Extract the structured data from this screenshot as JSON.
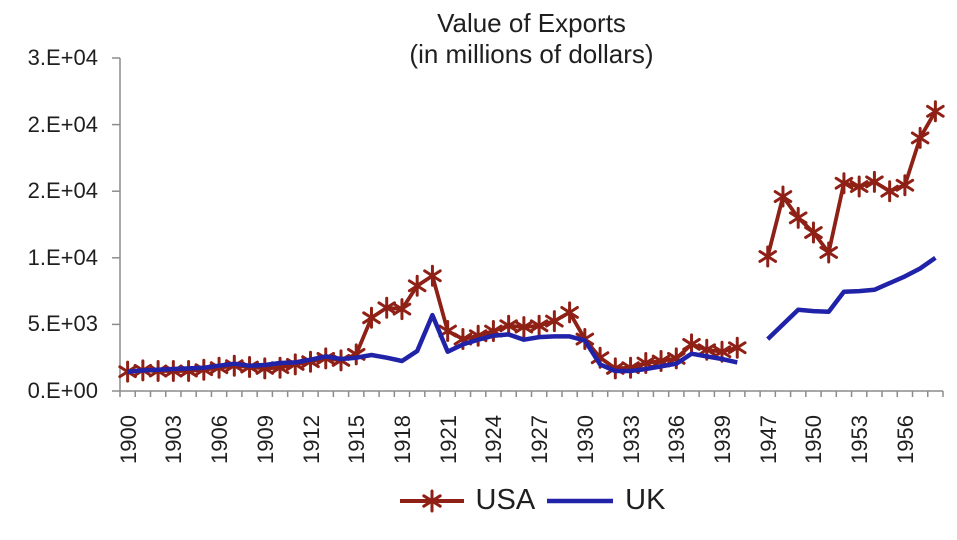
{
  "title": {
    "line1": "Value of Exports",
    "line2": "(in millions of dollars)"
  },
  "colors": {
    "usa_line": "#8e2016",
    "uk_line": "#2023a8",
    "axis": "#8c8c8c",
    "text": "#1f1f1f",
    "background": "#ffffff"
  },
  "chart_data": {
    "type": "line",
    "title": "Value of Exports (in millions of dollars)",
    "xlabel": "",
    "ylabel": "",
    "grid": false,
    "legend_position": "bottom-center",
    "y_axis": {
      "range": [
        0,
        25000
      ],
      "tick_values": [
        0,
        5000,
        10000,
        15000,
        20000,
        25000
      ],
      "tick_labels": [
        "0.E+00",
        "5.E+03",
        "1.E+04",
        "2.E+04",
        "2.E+04",
        "3.E+04"
      ]
    },
    "x_axis": {
      "visible_labels": [
        "1900",
        "1903",
        "1906",
        "1909",
        "1912",
        "1915",
        "1918",
        "1921",
        "1924",
        "1927",
        "1930",
        "1933",
        "1936",
        "1939",
        "1947",
        "1950",
        "1953",
        "1956"
      ],
      "label_rotation_degrees": 90,
      "category_years_prewar_first": 1900,
      "category_years_prewar_last": 1940,
      "category_years_postwar_first": 1947,
      "category_years_postwar_last": 1958
    },
    "series": [
      {
        "name": "USA",
        "color": "#8e2016",
        "marker": "star",
        "points": [
          [
            1900,
            1450
          ],
          [
            1901,
            1550
          ],
          [
            1902,
            1500
          ],
          [
            1903,
            1500
          ],
          [
            1904,
            1500
          ],
          [
            1905,
            1600
          ],
          [
            1906,
            1750
          ],
          [
            1907,
            1900
          ],
          [
            1908,
            1800
          ],
          [
            1909,
            1700
          ],
          [
            1910,
            1750
          ],
          [
            1911,
            2000
          ],
          [
            1912,
            2200
          ],
          [
            1913,
            2450
          ],
          [
            1914,
            2300
          ],
          [
            1915,
            2750
          ],
          [
            1916,
            5500
          ],
          [
            1917,
            6250
          ],
          [
            1918,
            6150
          ],
          [
            1919,
            7900
          ],
          [
            1920,
            8650
          ],
          [
            1921,
            4500
          ],
          [
            1922,
            3900
          ],
          [
            1923,
            4150
          ],
          [
            1924,
            4500
          ],
          [
            1925,
            4900
          ],
          [
            1926,
            4800
          ],
          [
            1927,
            4900
          ],
          [
            1928,
            5250
          ],
          [
            1929,
            5900
          ],
          [
            1930,
            3900
          ],
          [
            1931,
            2500
          ],
          [
            1932,
            1700
          ],
          [
            1933,
            1750
          ],
          [
            1934,
            2100
          ],
          [
            1935,
            2250
          ],
          [
            1936,
            2450
          ],
          [
            1937,
            3500
          ],
          [
            1938,
            3100
          ],
          [
            1939,
            2950
          ],
          [
            1940,
            3250
          ],
          [
            1947,
            10100
          ],
          [
            1948,
            14600
          ],
          [
            1949,
            13000
          ],
          [
            1950,
            11900
          ],
          [
            1951,
            10400
          ],
          [
            1952,
            15600
          ],
          [
            1953,
            15350
          ],
          [
            1954,
            15700
          ],
          [
            1955,
            15000
          ],
          [
            1956,
            15450
          ],
          [
            1957,
            19000
          ],
          [
            1958,
            21000
          ]
        ]
      },
      {
        "name": "UK",
        "color": "#2023a8",
        "marker": "none",
        "points": [
          [
            1900,
            1450
          ],
          [
            1901,
            1550
          ],
          [
            1902,
            1600
          ],
          [
            1903,
            1650
          ],
          [
            1904,
            1700
          ],
          [
            1905,
            1750
          ],
          [
            1906,
            1900
          ],
          [
            1907,
            2050
          ],
          [
            1908,
            1900
          ],
          [
            1909,
            1950
          ],
          [
            1910,
            2100
          ],
          [
            1911,
            2150
          ],
          [
            1912,
            2350
          ],
          [
            1913,
            2600
          ],
          [
            1914,
            2400
          ],
          [
            1915,
            2500
          ],
          [
            1916,
            2700
          ],
          [
            1917,
            2500
          ],
          [
            1918,
            2250
          ],
          [
            1919,
            3000
          ],
          [
            1920,
            5700
          ],
          [
            1921,
            2950
          ],
          [
            1922,
            3500
          ],
          [
            1923,
            3850
          ],
          [
            1924,
            4150
          ],
          [
            1925,
            4250
          ],
          [
            1926,
            3850
          ],
          [
            1927,
            4050
          ],
          [
            1928,
            4100
          ],
          [
            1929,
            4100
          ],
          [
            1930,
            3800
          ],
          [
            1931,
            2000
          ],
          [
            1932,
            1500
          ],
          [
            1933,
            1500
          ],
          [
            1934,
            1650
          ],
          [
            1935,
            1850
          ],
          [
            1936,
            2050
          ],
          [
            1937,
            2800
          ],
          [
            1938,
            2600
          ],
          [
            1939,
            2400
          ],
          [
            1940,
            2150
          ],
          [
            1947,
            3900
          ],
          [
            1948,
            5000
          ],
          [
            1949,
            6100
          ],
          [
            1950,
            6000
          ],
          [
            1951,
            5950
          ],
          [
            1952,
            7450
          ],
          [
            1953,
            7500
          ],
          [
            1954,
            7600
          ],
          [
            1955,
            8100
          ],
          [
            1956,
            8600
          ],
          [
            1957,
            9200
          ],
          [
            1958,
            10000
          ]
        ]
      }
    ]
  }
}
